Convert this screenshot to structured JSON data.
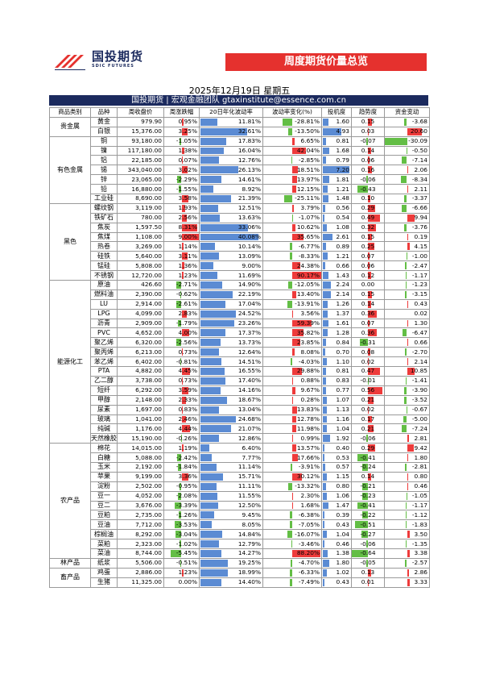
{
  "logo": {
    "cn": "国投期货",
    "en": "SDIC FUTURES"
  },
  "banner_title": "周度期货价量总览",
  "date": "2025年12月19日 星期五",
  "team_line": "国投期货 | 宏观金融团队 gtaxinstitute@essence.com.cn",
  "columns": [
    "商品类别",
    "品种",
    "周收盘价",
    "周涨跌幅",
    "20日年化波动率",
    "波动率变化(%)",
    "投机度",
    "趋势度",
    "资金变动"
  ],
  "colors": {
    "positive": "#ee3b3b",
    "negative": "#63be45",
    "volatility": "#5b8bd3",
    "header": "#1b2a5e",
    "banner": "#e5312e"
  },
  "groups": [
    {
      "category": "贵金属",
      "rows": [
        [
          "黄金",
          "979.90",
          "0.95%",
          "11.81%",
          "-28.81%",
          "1.60",
          "0.15",
          "-3.68"
        ],
        [
          "白银",
          "15,376.00",
          "3.25%",
          "32.61%",
          "-13.50%",
          "4.93",
          "0.03",
          "20.60"
        ]
      ]
    },
    {
      "category": "有色金属",
      "rows": [
        [
          "铜",
          "93,180.00",
          "-1.05%",
          "17.83%",
          "6.65%",
          "0.81",
          "-0.07",
          "-30.09"
        ],
        [
          "镍",
          "117,180.00",
          "1.38%",
          "16.04%",
          "42.04%",
          "1.68",
          "0.14",
          "-0.50"
        ],
        [
          "铝",
          "22,185.00",
          "0.07%",
          "12.76%",
          "-2.85%",
          "0.79",
          "0.06",
          "-7.14"
        ],
        [
          "锡",
          "343,040.00",
          "3.02%",
          "26.13%",
          "18.51%",
          "7.20",
          "0.16",
          "2.06"
        ],
        [
          "锌",
          "23,065.00",
          "-2.29%",
          "14.61%",
          "13.97%",
          "1.81",
          "-0.06",
          "-8.34"
        ],
        [
          "铅",
          "16,880.00",
          "-1.55%",
          "8.92%",
          "12.15%",
          "1.21",
          "-0.43",
          "2.11"
        ],
        [
          "工业硅",
          "8,690.00",
          "3.58%",
          "21.39%",
          "-25.11%",
          "1.48",
          "0.10",
          "-3.37"
        ]
      ]
    },
    {
      "category": "黑色",
      "rows": [
        [
          "螺纹钢",
          "3,119.00",
          "1.93%",
          "12.51%",
          "3.79%",
          "0.56",
          "0.29",
          "-6.66"
        ],
        [
          "铁矿石",
          "780.00",
          "2.56%",
          "13.63%",
          "-1.07%",
          "0.54",
          "0.49",
          "9.94"
        ],
        [
          "焦炭",
          "1,597.50",
          "8.31%",
          "33.06%",
          "10.62%",
          "1.08",
          "0.32",
          "-3.76"
        ],
        [
          "焦煤",
          "1,108.00",
          "9.00%",
          "40.08%",
          "35.65%",
          "2.61",
          "0.15",
          "0.19"
        ],
        [
          "热卷",
          "3,269.00",
          "1.14%",
          "10.14%",
          "-6.77%",
          "0.89",
          "0.25",
          "4.15"
        ],
        [
          "硅铁",
          "5,640.00",
          "3.11%",
          "13.09%",
          "-8.33%",
          "1.21",
          "0.07",
          "-1.00"
        ],
        [
          "锰硅",
          "5,808.00",
          "1.36%",
          "9.00%",
          "24.38%",
          "0.66",
          "0.06",
          "-2.47"
        ],
        [
          "不锈钢",
          "12,720.00",
          "1.23%",
          "11.69%",
          "90.17%",
          "1.43",
          "0.12",
          "-1.17"
        ]
      ]
    },
    {
      "category": "能源化工",
      "rows": [
        [
          "原油",
          "426.60",
          "-2.71%",
          "14.90%",
          "-12.05%",
          "2.24",
          "0.00",
          "-1.23"
        ],
        [
          "燃料油",
          "2,390.00",
          "-0.62%",
          "22.19%",
          "13.40%",
          "2.14",
          "0.15",
          "-3.15"
        ],
        [
          "LU",
          "2,914.00",
          "-2.61%",
          "17.04%",
          "-13.91%",
          "1.26",
          "0.14",
          "0.43"
        ],
        [
          "LPG",
          "4,099.00",
          "2.83%",
          "24.52%",
          "3.56%",
          "1.37",
          "0.36",
          "0.02"
        ],
        [
          "沥青",
          "2,909.00",
          "-1.79%",
          "23.26%",
          "59.39%",
          "1.61",
          "0.07",
          "1.30"
        ],
        [
          "PVC",
          "4,652.00",
          "4.00%",
          "17.37%",
          "35.82%",
          "1.28",
          "0.36",
          "-6.47"
        ],
        [
          "聚乙烯",
          "6,320.00",
          "-2.56%",
          "13.73%",
          "23.85%",
          "0.84",
          "-0.31",
          "0.66"
        ],
        [
          "聚丙烯",
          "6,213.00",
          "0.73%",
          "12.64%",
          "8.08%",
          "0.70",
          "0.08",
          "-2.70"
        ],
        [
          "苯乙烯",
          "6,402.00",
          "-0.81%",
          "14.51%",
          "-4.03%",
          "1.10",
          "0.02",
          "2.14"
        ],
        [
          "PTA",
          "4,882.00",
          "4.45%",
          "16.55%",
          "29.88%",
          "0.81",
          "0.47",
          "10.85"
        ],
        [
          "乙二醇",
          "3,738.00",
          "0.73%",
          "17.40%",
          "0.88%",
          "0.83",
          "-0.01",
          "-1.41"
        ],
        [
          "短纤",
          "6,292.00",
          "3.59%",
          "14.16%",
          "9.67%",
          "0.77",
          "0.56",
          "-3.90"
        ],
        [
          "甲醇",
          "2,148.00",
          "2.33%",
          "18.67%",
          "0.28%",
          "1.07",
          "0.21",
          "-3.52"
        ],
        [
          "尿素",
          "1,697.00",
          "0.83%",
          "13.04%",
          "13.83%",
          "1.13",
          "0.02",
          "-0.67"
        ],
        [
          "玻璃",
          "1,041.00",
          "2.46%",
          "24.68%",
          "12.78%",
          "1.16",
          "0.17",
          "-5.00"
        ],
        [
          "纯碱",
          "1,176.00",
          "4.44%",
          "21.07%",
          "11.98%",
          "1.04",
          "0.21",
          "-7.24"
        ],
        [
          "天然橡胶",
          "15,190.00",
          "-0.26%",
          "12.86%",
          "0.99%",
          "1.92",
          "-0.06",
          "2.81"
        ]
      ]
    },
    {
      "category": "农产品",
      "rows": [
        [
          "棉花",
          "14,015.00",
          "1.19%",
          "6.40%",
          "13.57%",
          "0.40",
          "0.29",
          "9.42"
        ],
        [
          "白糖",
          "5,088.00",
          "-2.42%",
          "7.77%",
          "17.66%",
          "0.53",
          "-0.41",
          "1.80"
        ],
        [
          "玉米",
          "2,192.00",
          "-1.84%",
          "11.14%",
          "-3.91%",
          "0.57",
          "-0.24",
          "-2.81"
        ],
        [
          "苹果",
          "9,199.00",
          "3.36%",
          "15.71%",
          "30.12%",
          "1.15",
          "0.14",
          "0.80"
        ],
        [
          "淀粉",
          "2,502.00",
          "-0.95%",
          "11.11%",
          "-13.32%",
          "0.80",
          "-0.21",
          "0.46"
        ],
        [
          "豆一",
          "4,052.00",
          "-2.08%",
          "11.55%",
          "2.30%",
          "1.06",
          "-0.23",
          "-1.05"
        ],
        [
          "豆二",
          "3,676.00",
          "-3.39%",
          "12.50%",
          "1.68%",
          "1.47",
          "-0.41",
          "-1.17"
        ],
        [
          "豆粕",
          "2,735.00",
          "-1.26%",
          "9.45%",
          "-6.38%",
          "0.39",
          "-0.22",
          "-1.12"
        ],
        [
          "豆油",
          "7,712.00",
          "-3.53%",
          "8.05%",
          "-7.05%",
          "0.43",
          "-0.51",
          "-1.83"
        ],
        [
          "棕榈油",
          "8,292.00",
          "-3.04%",
          "14.84%",
          "-16.07%",
          "1.04",
          "-0.27",
          "3.50"
        ],
        [
          "菜粕",
          "2,323.00",
          "-1.02%",
          "12.79%",
          "-3.46%",
          "0.46",
          "-0.06",
          "-1.35"
        ],
        [
          "菜油",
          "8,744.00",
          "-5.45%",
          "14.27%",
          "88.20%",
          "1.38",
          "-0.64",
          "3.38"
        ]
      ]
    },
    {
      "category": "林产品",
      "rows": [
        [
          "纸浆",
          "5,506.00",
          "-0.51%",
          "19.25%",
          "-4.70%",
          "1.80",
          "-0.05",
          "-2.57"
        ]
      ]
    },
    {
      "category": "畜产品",
      "rows": [
        [
          "鸡蛋",
          "2,886.00",
          "1.23%",
          "18.99%",
          "-6.33%",
          "1.02",
          "0.13",
          "2.86"
        ],
        [
          "生猪",
          "11,325.00",
          "0.00%",
          "14.40%",
          "-7.49%",
          "0.43",
          "0.01",
          "3.33"
        ]
      ]
    }
  ]
}
